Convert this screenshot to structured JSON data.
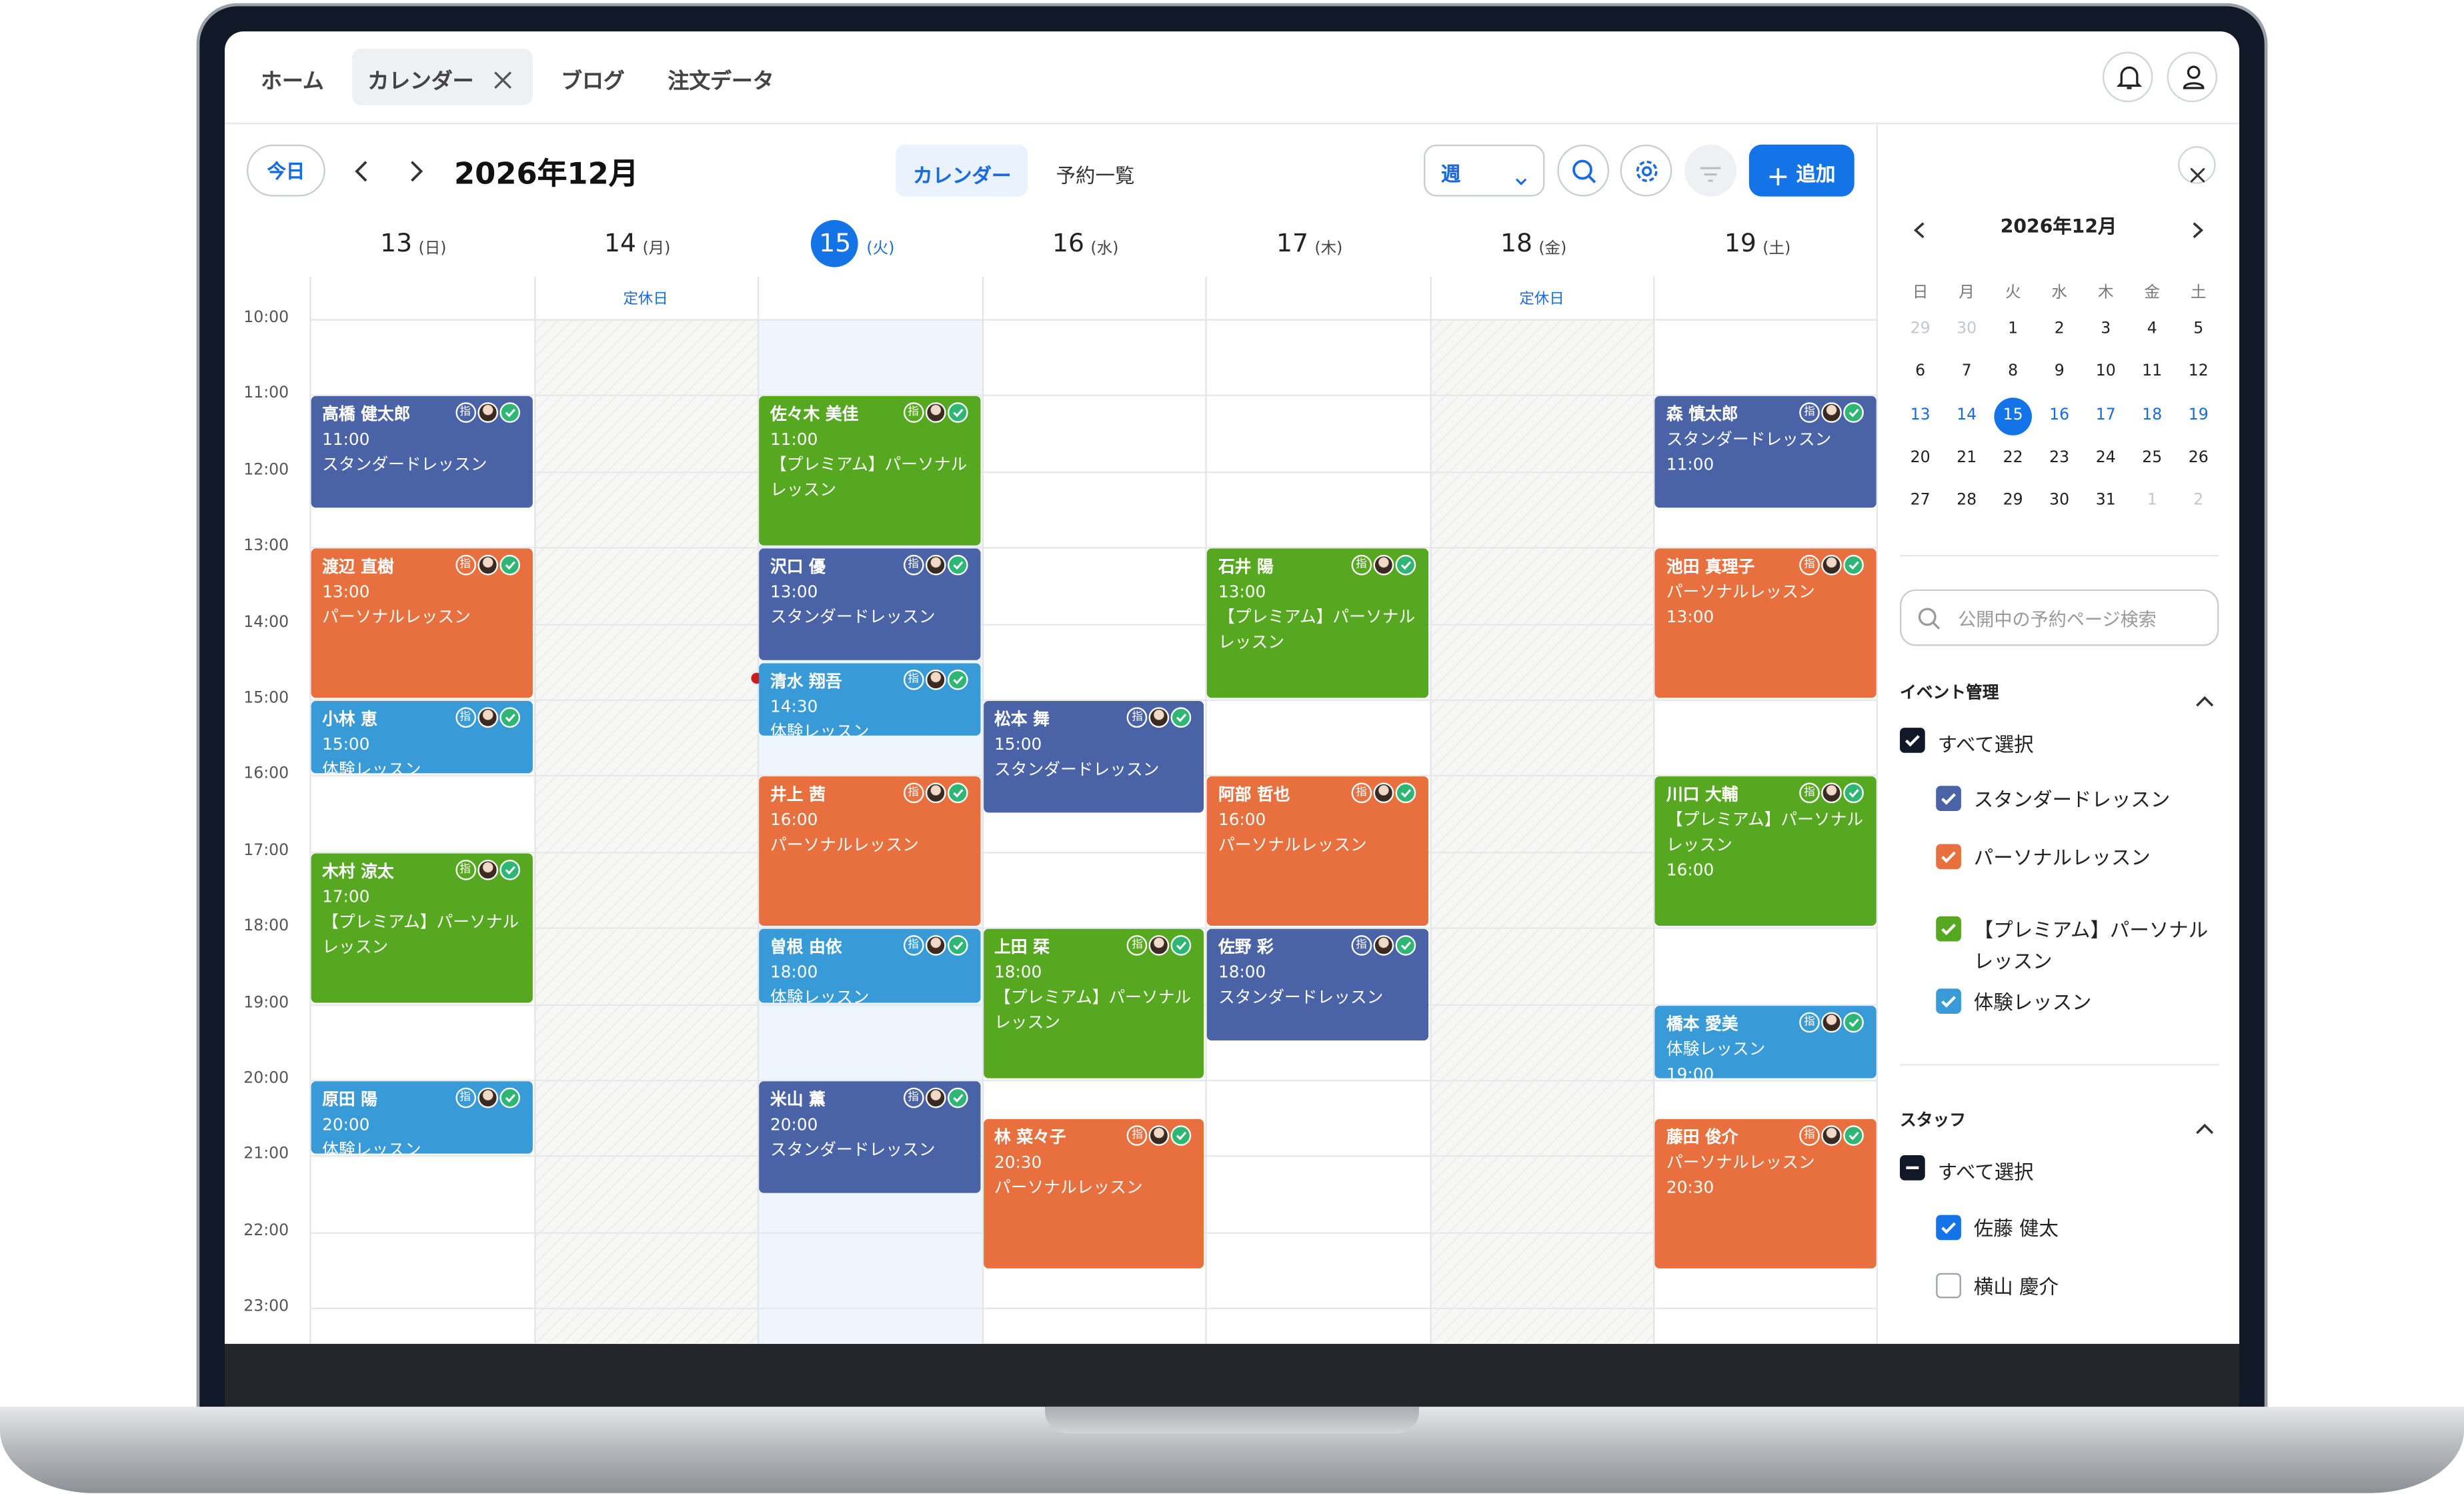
{
  "nav": {
    "tabs": [
      "ホーム",
      "カレンダー",
      "ブログ",
      "注文データ"
    ]
  },
  "toolbar": {
    "today": "今日",
    "month": "2026年12月",
    "views": [
      "カレンダー",
      "予約一覧"
    ],
    "range": "週",
    "add": "追加"
  },
  "week": {
    "times": [
      "10:00",
      "11:00",
      "12:00",
      "13:00",
      "14:00",
      "15:00",
      "16:00",
      "17:00",
      "18:00",
      "19:00",
      "20:00",
      "21:00",
      "22:00",
      "23:00"
    ],
    "badge": "指",
    "days": [
      {
        "date": "13",
        "weekday": "日",
        "events": [
          {
            "lines": [
              "高橋 健太郎",
              "11:00",
              "スタンダードレッスン"
            ]
          },
          {
            "lines": [
              "渡辺 直樹",
              "13:00",
              "パーソナルレッスン"
            ]
          },
          {
            "lines": [
              "小林 恵",
              "15:00",
              "体験レッスン"
            ]
          },
          {
            "lines": [
              "木村 涼太",
              "17:00",
              "【プレミアム】パーソナルレッスン"
            ]
          },
          {
            "lines": [
              "原田 陽",
              "20:00",
              "体験レッスン"
            ]
          }
        ]
      },
      {
        "date": "14",
        "weekday": "月",
        "note": "定休日",
        "events": []
      },
      {
        "date": "15",
        "weekday": "火",
        "selected": true,
        "events": [
          {
            "lines": [
              "佐々木 美佳",
              "11:00",
              "【プレミアム】パーソナルレッスン"
            ]
          },
          {
            "lines": [
              "沢口 優",
              "13:00",
              "スタンダードレッスン"
            ]
          },
          {
            "lines": [
              "清水 翔吾",
              "14:30",
              "体験レッスン"
            ]
          },
          {
            "lines": [
              "井上 茜",
              "16:00",
              "パーソナルレッスン"
            ]
          },
          {
            "lines": [
              "曽根 由依",
              "18:00",
              "体験レッスン"
            ]
          },
          {
            "lines": [
              "米山 薫",
              "20:00",
              "スタンダードレッスン"
            ]
          }
        ]
      },
      {
        "date": "16",
        "weekday": "水",
        "events": [
          {
            "lines": [
              "松本 舞",
              "15:00",
              "スタンダードレッスン"
            ]
          },
          {
            "lines": [
              "上田 栞",
              "18:00",
              "【プレミアム】パーソナルレッスン"
            ]
          },
          {
            "lines": [
              "林 菜々子",
              "20:30",
              "パーソナルレッスン"
            ]
          }
        ]
      },
      {
        "date": "17",
        "weekday": "木",
        "events": [
          {
            "lines": [
              "石井 陽",
              "13:00",
              "【プレミアム】パーソナルレッスン"
            ]
          },
          {
            "lines": [
              "阿部 哲也",
              "16:00",
              "パーソナルレッスン"
            ]
          },
          {
            "lines": [
              "佐野 彩",
              "18:00",
              "スタンダードレッスン"
            ]
          }
        ]
      },
      {
        "date": "18",
        "weekday": "金",
        "note": "定休日",
        "events": []
      },
      {
        "date": "19",
        "weekday": "土",
        "events": [
          {
            "lines": [
              "森 慎太郎",
              "スタンダードレッスン",
              "11:00"
            ]
          },
          {
            "lines": [
              "池田 真理子",
              "パーソナルレッスン",
              "13:00"
            ]
          },
          {
            "lines": [
              "川口 大輔",
              "【プレミアム】パーソナルレッスン",
              "16:00"
            ]
          },
          {
            "lines": [
              "橋本 愛美",
              "体験レッスン",
              "19:00"
            ]
          },
          {
            "lines": [
              "藤田 俊介",
              "パーソナルレッスン",
              "20:30"
            ]
          }
        ]
      }
    ]
  },
  "sidebar": {
    "month": "2026年12月",
    "weekdays": [
      "日",
      "月",
      "火",
      "水",
      "木",
      "金",
      "土"
    ],
    "weeks": [
      [
        "29",
        "30",
        "1",
        "2",
        "3",
        "4",
        "5"
      ],
      [
        "6",
        "7",
        "8",
        "9",
        "10",
        "11",
        "12"
      ],
      [
        "13",
        "14",
        "15",
        "16",
        "17",
        "18",
        "19"
      ],
      [
        "20",
        "21",
        "22",
        "23",
        "24",
        "25",
        "26"
      ],
      [
        "27",
        "28",
        "29",
        "30",
        "31",
        "1",
        "2"
      ]
    ],
    "search": "公開中の予約ページ検索",
    "event_section": {
      "title": "イベント管理",
      "all": "すべて選択",
      "items": [
        {
          "label": "スタンダードレッスン",
          "color": "#4a63a6",
          "checked": true
        },
        {
          "label": "パーソナルレッスン",
          "color": "#e8703f",
          "checked": true
        },
        {
          "label": "【プレミアム】パーソナルレッスン",
          "color": "#55a81f",
          "checked": true
        },
        {
          "label": "体験レッスン",
          "color": "#399ad8",
          "checked": true
        }
      ]
    },
    "staff_section": {
      "title": "スタッフ",
      "all": "すべて選択",
      "items": [
        {
          "label": "佐藤 健太",
          "checked": true
        },
        {
          "label": "横山 慶介",
          "checked": false
        }
      ]
    }
  }
}
